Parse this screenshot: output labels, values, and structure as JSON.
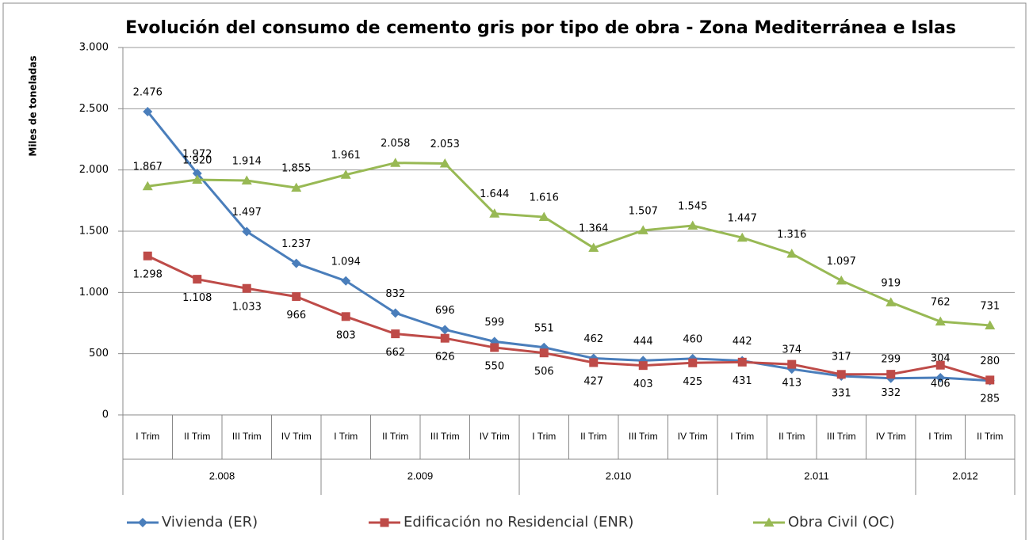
{
  "chart_data": {
    "type": "line",
    "title": "Evolución del consumo de cemento gris por tipo de obra - Zona Mediterránea e Islas",
    "ylabel": "Miles de toneladas",
    "categories": [
      "I Trim",
      "II Trim",
      "III Trim",
      "IV Trim",
      "I Trim",
      "II Trim",
      "III Trim",
      "IV Trim",
      "I Trim",
      "II Trim",
      "III Trim",
      "IV Trim",
      "I Trim",
      "II Trim",
      "III Trim",
      "IV Trim",
      "I Trim",
      "II Trim"
    ],
    "group_labels": [
      "2.008",
      "2.009",
      "2.010",
      "2.011",
      "2.012"
    ],
    "group_sizes": [
      4,
      4,
      4,
      4,
      2
    ],
    "ylim": [
      0,
      3000
    ],
    "yticks": [
      0,
      500,
      {
        "value": 1000,
        "label": "1.000"
      },
      {
        "value": 1500,
        "label": "1.500"
      },
      {
        "value": 2000,
        "label": "2.000"
      },
      {
        "value": 2500,
        "label": "2.500"
      },
      {
        "value": 3000,
        "label": "3.000"
      }
    ],
    "grid": true,
    "legend": "bottom",
    "series": [
      {
        "name": "Vivienda (ER)",
        "color": "#4a7ebb",
        "marker": "diamond",
        "label_side": "above",
        "values": [
          2476,
          1972,
          1497,
          1237,
          1094,
          832,
          696,
          599,
          551,
          462,
          444,
          460,
          442,
          374,
          317,
          299,
          304,
          280
        ],
        "value_labels": [
          "2.476",
          "1.972",
          "1.497",
          "1.237",
          "1.094",
          "832",
          "696",
          "599",
          "551",
          "462",
          "444",
          "460",
          "442",
          "374",
          "317",
          "299",
          "304",
          "280"
        ]
      },
      {
        "name": "Edificación no Residencial (ENR)",
        "color": "#be4b48",
        "marker": "square",
        "label_side": "below",
        "values": [
          1298,
          1108,
          1033,
          966,
          803,
          662,
          626,
          550,
          506,
          427,
          403,
          425,
          431,
          413,
          331,
          332,
          406,
          285
        ],
        "value_labels": [
          "1.298",
          "1.108",
          "1.033",
          "966",
          "803",
          "662",
          "626",
          "550",
          "506",
          "427",
          "403",
          "425",
          "431",
          "413",
          "331",
          "332",
          "406",
          "285"
        ]
      },
      {
        "name": "Obra Civil (OC)",
        "color": "#98b954",
        "marker": "triangle",
        "label_side": "above",
        "values": [
          1867,
          1920,
          1914,
          1855,
          1961,
          2058,
          2053,
          1644,
          1616,
          1364,
          1507,
          1545,
          1447,
          1316,
          1097,
          919,
          762,
          731
        ],
        "value_labels": [
          "1.867",
          "1.920",
          "1.914",
          "1.855",
          "1.961",
          "2.058",
          "2.053",
          "1.644",
          "1.616",
          "1.364",
          "1.507",
          "1.545",
          "1.447",
          "1.316",
          "1.097",
          "919",
          "762",
          "731"
        ]
      }
    ]
  }
}
